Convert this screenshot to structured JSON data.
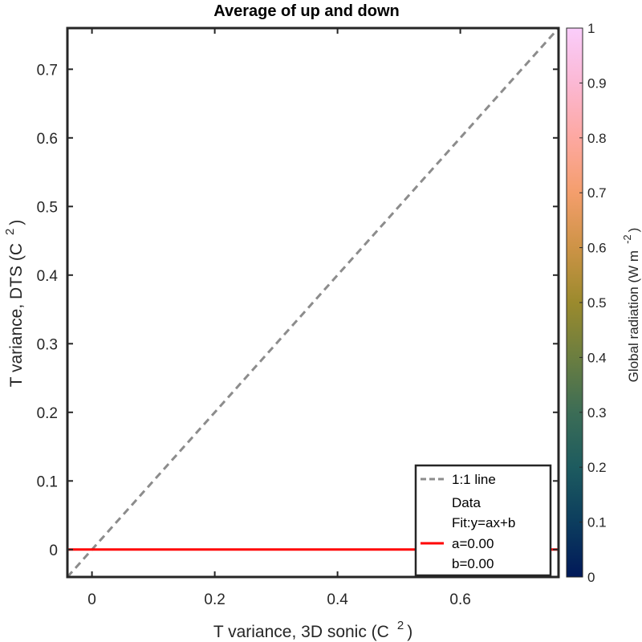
{
  "chart_data": {
    "type": "scatter",
    "title": "Average of up and down",
    "xlabel": "T variance, 3D sonic (C",
    "xlabel_sup": "2",
    "xlabel_close": ")",
    "ylabel": "T variance, DTS (C",
    "ylabel_sup": "2",
    "ylabel_close": ")",
    "xlim": [
      -0.04,
      0.76
    ],
    "ylim": [
      -0.04,
      0.76
    ],
    "x_ticks": [
      0,
      0.2,
      0.4,
      0.6
    ],
    "x_tick_labels": [
      "0",
      "0.2",
      "0.4",
      "0.6"
    ],
    "y_ticks": [
      0,
      0.1,
      0.2,
      0.3,
      0.4,
      0.5,
      0.6,
      0.7
    ],
    "y_tick_labels": [
      "0",
      "0.1",
      "0.2",
      "0.3",
      "0.4",
      "0.5",
      "0.6",
      "0.7"
    ],
    "grid": false,
    "series": [
      {
        "name": "1:1 line",
        "kind": "line",
        "style": "dashed",
        "color": "#8c8c8c",
        "x": [
          -0.04,
          0.76
        ],
        "y": [
          -0.04,
          0.76
        ]
      },
      {
        "name": "Data",
        "kind": "scatter",
        "x": [],
        "y": []
      },
      {
        "name": "Fit:y=ax+b",
        "kind": "line",
        "style": "solid",
        "color": "#ff0000",
        "x": [
          -0.04,
          0.76
        ],
        "y": [
          0,
          0
        ]
      }
    ],
    "legend": {
      "position": "bottom-right",
      "entries": [
        "1:1 line",
        "Data",
        "Fit:y=ax+b",
        "a=0.00",
        "b=0.00"
      ]
    },
    "colorbar": {
      "label": "Global radiation (W m",
      "label_sup": "-2",
      "label_close": ")",
      "range": [
        0,
        1
      ],
      "ticks": [
        0,
        0.1,
        0.2,
        0.3,
        0.4,
        0.5,
        0.6,
        0.7,
        0.8,
        0.9,
        1
      ],
      "tick_labels": [
        "0",
        "0.1",
        "0.2",
        "0.3",
        "0.4",
        "0.5",
        "0.6",
        "0.7",
        "0.8",
        "0.9",
        "1"
      ],
      "colormap": "batlow",
      "colors": [
        "#011959",
        "#0c3d5e",
        "#1d5b5f",
        "#3c6d56",
        "#6b7e40",
        "#9b8a2d",
        "#cd9346",
        "#f49e6c",
        "#fda8a1",
        "#fbb8d4",
        "#facdfb"
      ]
    }
  }
}
